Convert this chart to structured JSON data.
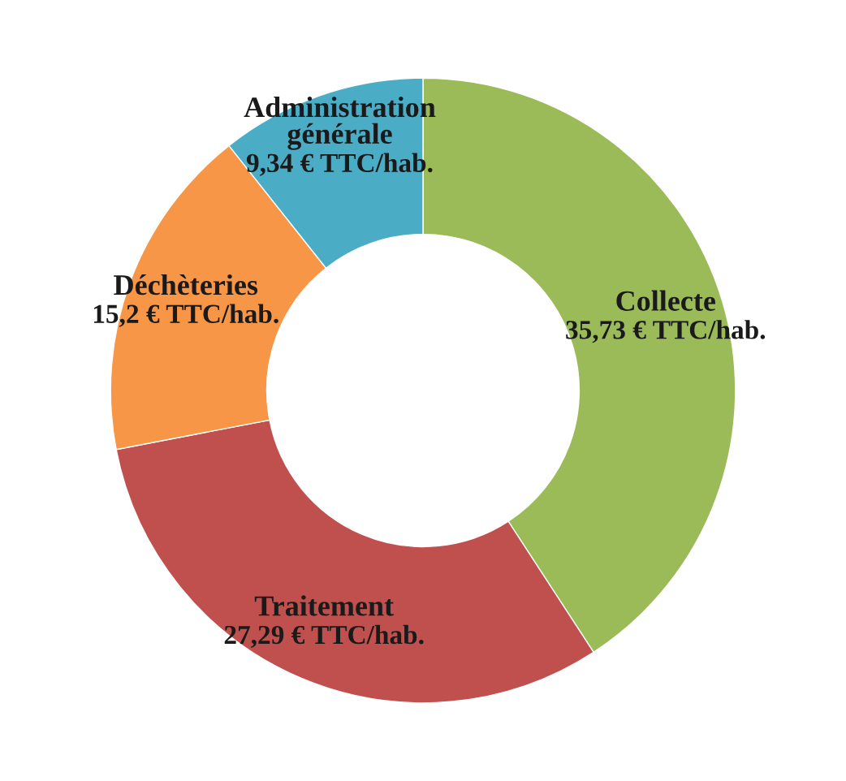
{
  "chart_data": {
    "type": "donut",
    "categories": [
      "Collecte",
      "Traitement",
      "Déchèteries",
      "Administration générale"
    ],
    "values": [
      35.73,
      27.29,
      15.2,
      9.34
    ],
    "value_labels": [
      "35,73 € TTC/hab.",
      "27,29 € TTC/hab.",
      "15,2 € TTC/hab.",
      "9,34 € TTC/hab."
    ],
    "colors": [
      "#9bbb59",
      "#c0504d",
      "#f79646",
      "#4bacc6"
    ],
    "legend": false
  }
}
